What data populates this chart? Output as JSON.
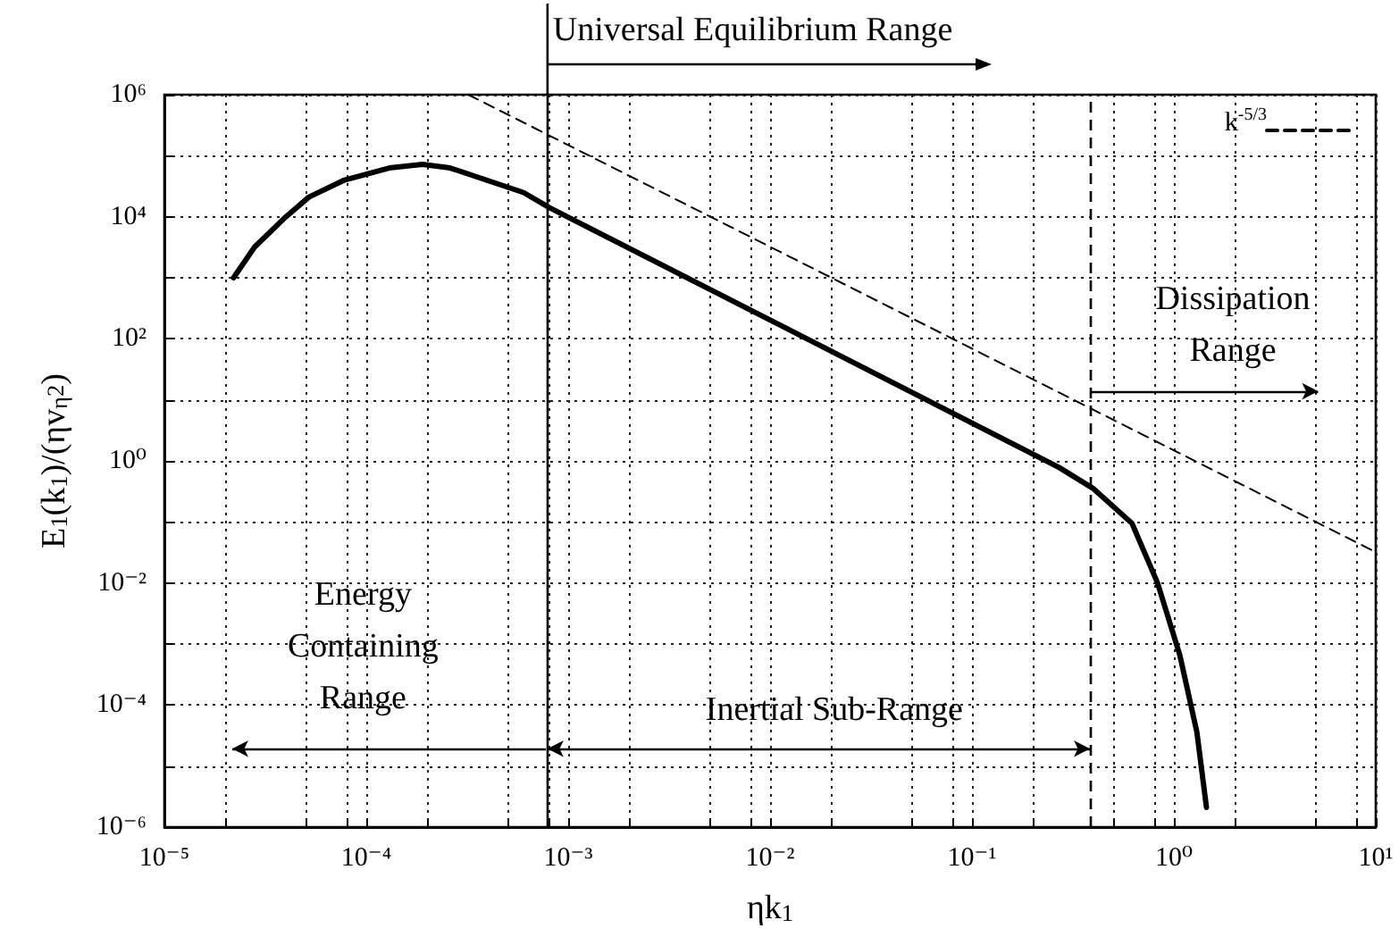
{
  "chart_data": {
    "type": "line",
    "xlabel": "ηk$_{1}$",
    "ylabel": "E$_{1}$(k$_{1}$)/(ηv$_{η}$$^{2}$)",
    "log": "xy",
    "grid": true,
    "legend": "top right",
    "marker": "none",
    "xlim": [
      1e-05,
      10
    ],
    "ylim": [
      1e-06,
      1000000.0
    ],
    "xticks": [
      {
        "value": 1e-05,
        "label": "10⁻⁵"
      },
      {
        "value": 2e-05,
        "label": null
      },
      {
        "value": 5e-05,
        "label": null
      },
      {
        "value": 8e-05,
        "label": null
      },
      {
        "value": 0.0001,
        "label": "10⁻⁴"
      },
      {
        "value": 0.0002,
        "label": null
      },
      {
        "value": 0.0005,
        "label": null
      },
      {
        "value": 0.0008,
        "label": null
      },
      {
        "value": 0.001,
        "label": "10⁻³"
      },
      {
        "value": 0.002,
        "label": null
      },
      {
        "value": 0.005,
        "label": null
      },
      {
        "value": 0.008,
        "label": null
      },
      {
        "value": 0.01,
        "label": "10⁻²"
      },
      {
        "value": 0.02,
        "label": null
      },
      {
        "value": 0.05,
        "label": null
      },
      {
        "value": 0.08,
        "label": null
      },
      {
        "value": 0.1,
        "label": "10⁻¹"
      },
      {
        "value": 0.2,
        "label": null
      },
      {
        "value": 0.5,
        "label": null
      },
      {
        "value": 0.8,
        "label": null
      },
      {
        "value": 1,
        "label": "10⁰"
      },
      {
        "value": 2,
        "label": null
      },
      {
        "value": 5,
        "label": null
      },
      {
        "value": 8,
        "label": null
      },
      {
        "value": 10,
        "label": "10¹"
      }
    ],
    "yticks": [
      {
        "value": 1e-06,
        "label": "10⁻⁶"
      },
      {
        "value": 1e-05,
        "label": null
      },
      {
        "value": 0.0001,
        "label": "10⁻⁴"
      },
      {
        "value": 0.001,
        "label": null
      },
      {
        "value": 0.01,
        "label": "10⁻²"
      },
      {
        "value": 0.1,
        "label": null
      },
      {
        "value": 1,
        "label": "10⁰"
      },
      {
        "value": 10,
        "label": null
      },
      {
        "value": 100,
        "label": "10²"
      },
      {
        "value": 1000,
        "label": null
      },
      {
        "value": 10000,
        "label": "10⁴"
      },
      {
        "value": 100000,
        "label": null
      },
      {
        "value": 1000000,
        "label": "10⁶"
      }
    ],
    "series": [
      {
        "color": "#000000",
        "line_style": "solid",
        "x": [
          2.2e-05,
          2.8e-05,
          4e-05,
          5.2e-05,
          7.8e-05,
          0.00013,
          0.00019,
          0.00026,
          0.0006,
          0.00081,
          0.012,
          0.27,
          0.4,
          0.62,
          0.83,
          1.07,
          1.3,
          1.45
        ],
        "values": [
          1000,
          3200,
          10000,
          21000,
          40000,
          63000,
          72000,
          63000,
          25000,
          14000,
          150,
          0.78,
          0.35,
          0.095,
          0.01,
          0.00066,
          3.6e-05,
          2.1e-06
        ]
      },
      {
        "name": "k$^{-5/3}$",
        "color": "#000000",
        "line_style": "dashed",
        "x": [
          0.00032,
          10
        ],
        "values": [
          1000000,
          0.032
        ]
      }
    ],
    "ref_lines": [
      {
        "axis": "x",
        "value": 0.00079,
        "color": "#000000",
        "line_style": "solid"
      },
      {
        "axis": "x",
        "value": 0.384,
        "color": "#000000",
        "line_style": "dashed"
      }
    ],
    "annotations": [
      "Universal Equilibrium Range",
      "Energy\nContaining\nRange",
      "Inertial Sub-Range",
      "Dissipation\nRange"
    ]
  }
}
